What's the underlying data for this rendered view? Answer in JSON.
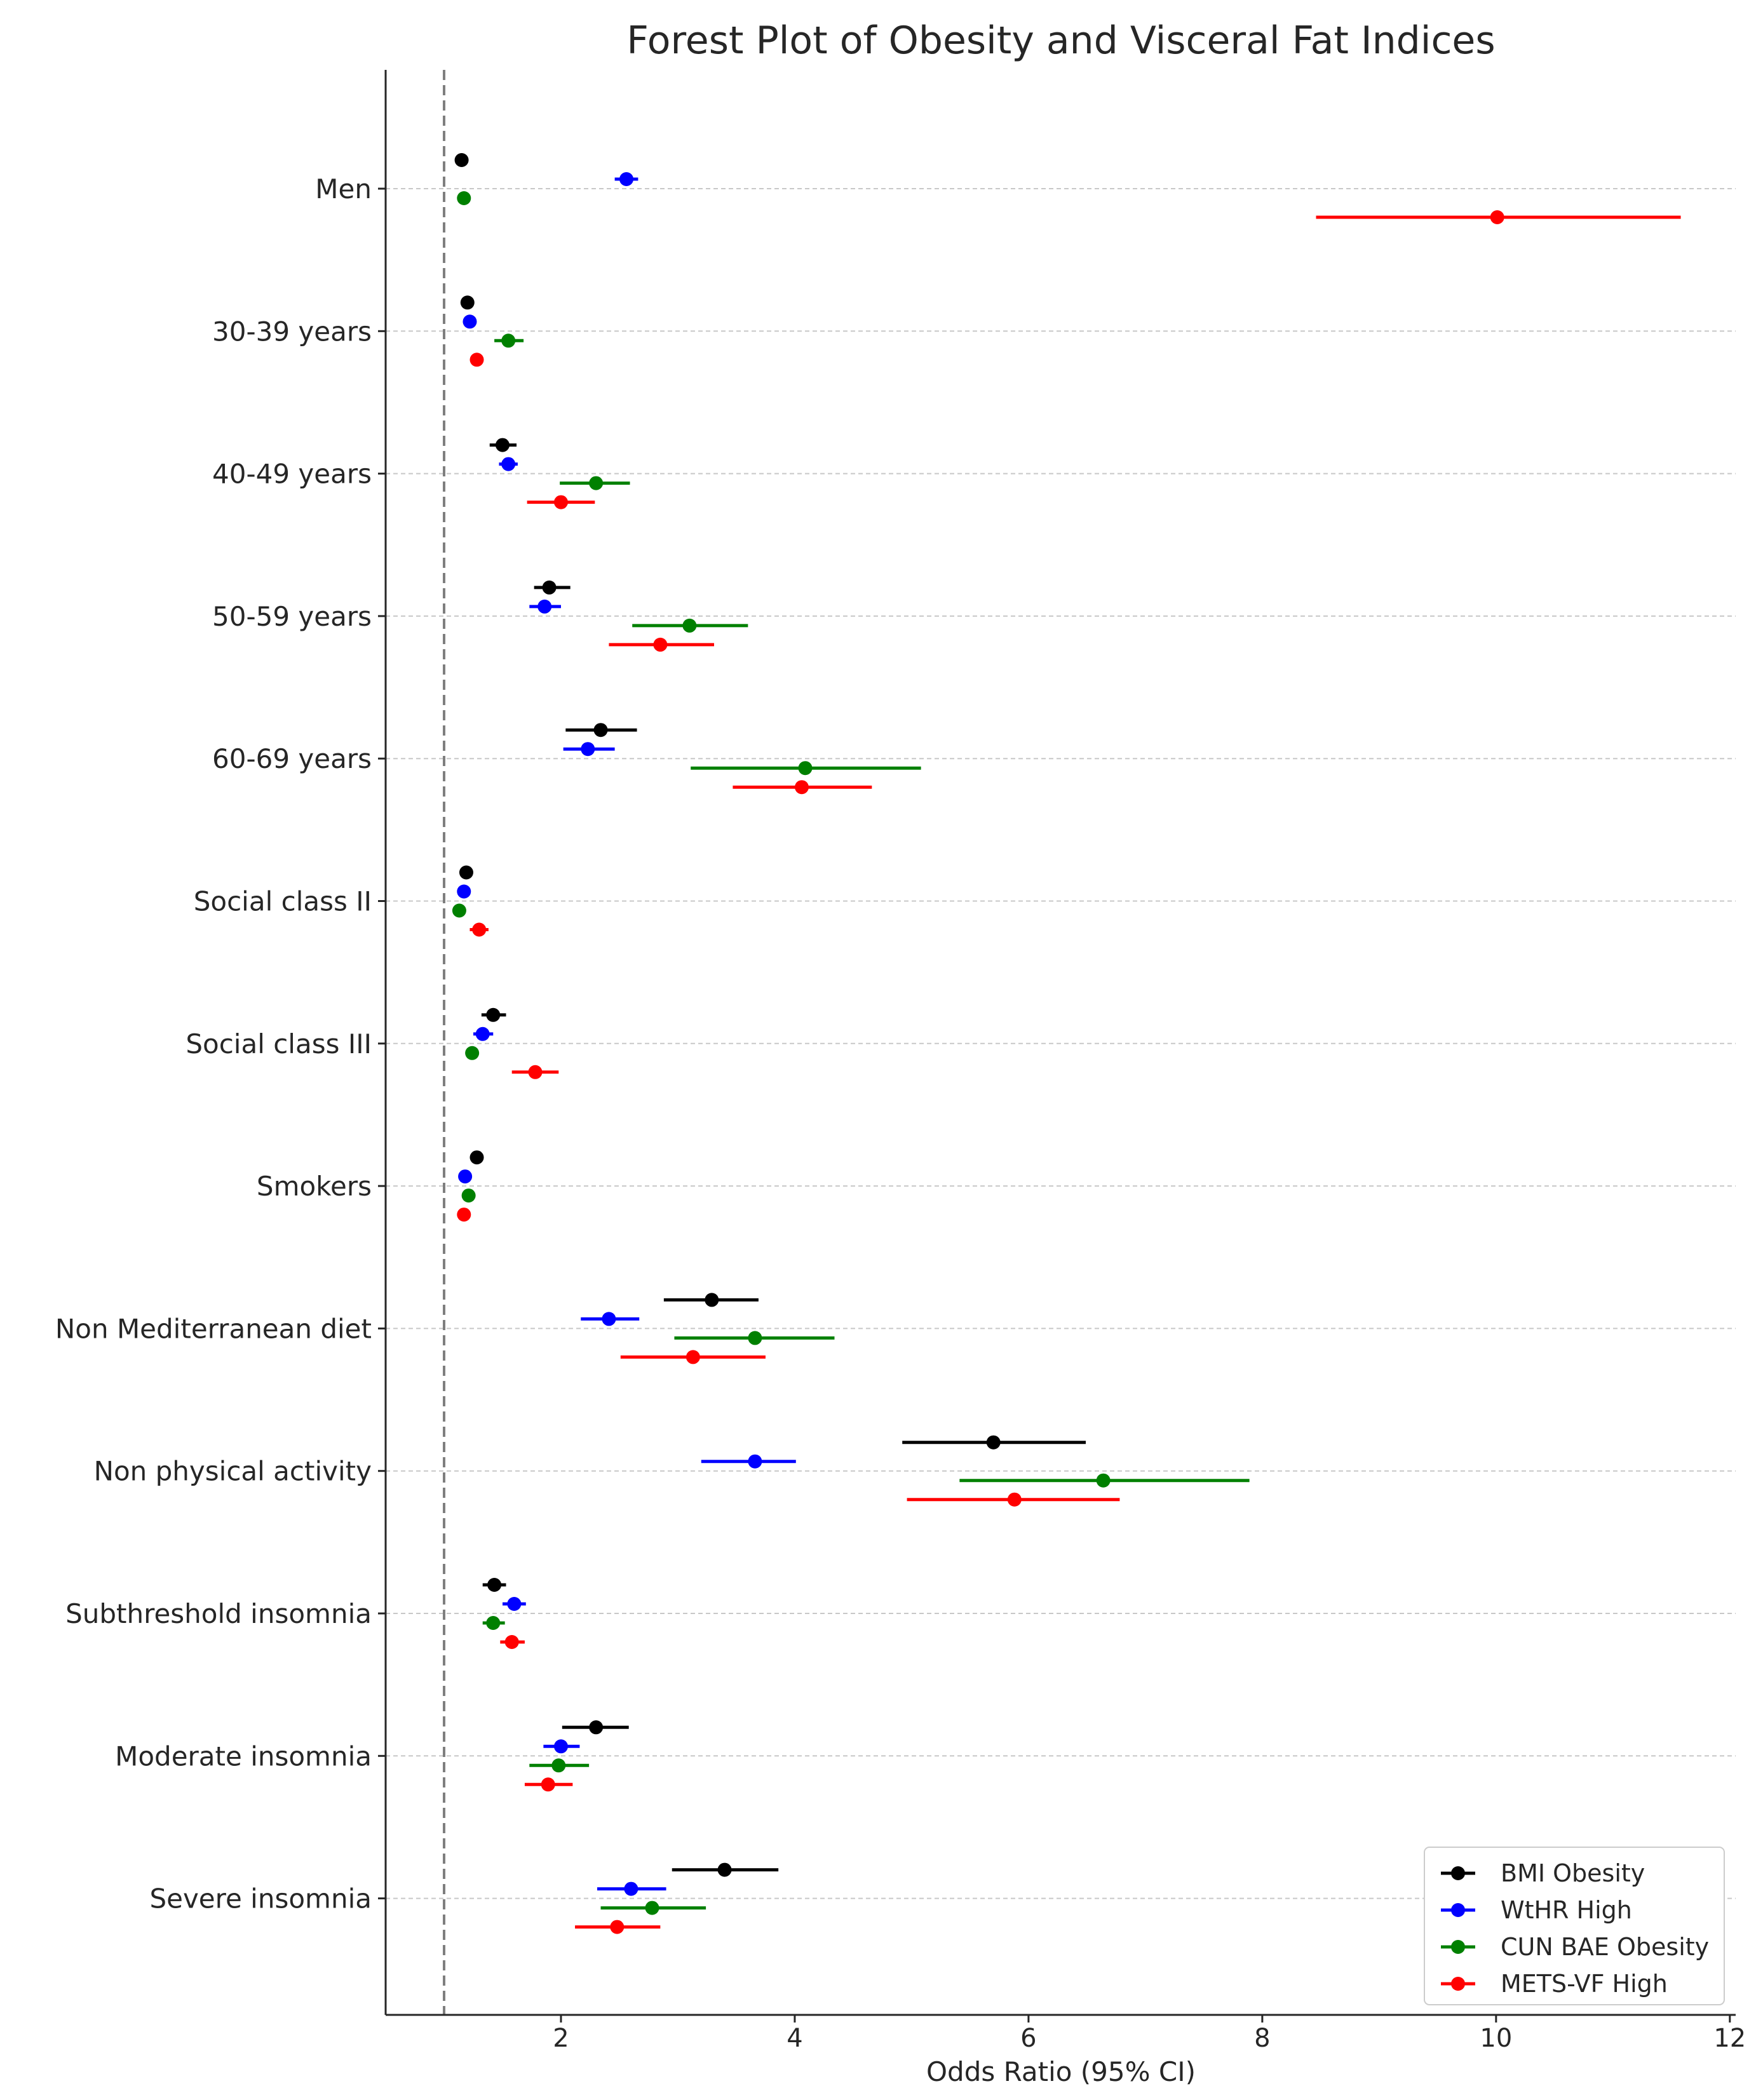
{
  "chart_data": {
    "type": "forest",
    "title": "Forest Plot of Obesity and Visceral Fat Indices",
    "xlabel": "Odds Ratio (95% CI)",
    "xlim": [
      0.5,
      12.05
    ],
    "xticks": [
      2,
      4,
      6,
      8,
      10,
      12
    ],
    "reference_line": 1,
    "legend_position": "bottom-right",
    "categories": [
      "Men",
      "30-39 years",
      "40-49 years",
      "50-59 years",
      "60-69 years",
      "Social class II",
      "Social class III",
      "Smokers",
      "Non Mediterranean diet",
      "Non physical activity",
      "Subthreshold insomnia",
      "Moderate insomnia",
      "Severe insomnia"
    ],
    "series": [
      {
        "name": "BMI Obesity",
        "color": "#000000",
        "points": [
          {
            "or": 1.15,
            "lo": 1.12,
            "hi": 1.18
          },
          {
            "or": 1.2,
            "lo": 1.16,
            "hi": 1.24
          },
          {
            "or": 1.5,
            "lo": 1.39,
            "hi": 1.62
          },
          {
            "or": 1.9,
            "lo": 1.77,
            "hi": 2.08
          },
          {
            "or": 2.34,
            "lo": 2.04,
            "hi": 2.65
          },
          {
            "or": 1.19,
            "lo": 1.15,
            "hi": 1.23
          },
          {
            "or": 1.42,
            "lo": 1.32,
            "hi": 1.53
          },
          {
            "or": 1.28,
            "lo": 1.23,
            "hi": 1.33
          },
          {
            "or": 3.29,
            "lo": 2.88,
            "hi": 3.69
          },
          {
            "or": 5.7,
            "lo": 4.92,
            "hi": 6.49
          },
          {
            "or": 1.43,
            "lo": 1.33,
            "hi": 1.53
          },
          {
            "or": 2.3,
            "lo": 2.01,
            "hi": 2.58
          },
          {
            "or": 3.4,
            "lo": 2.95,
            "hi": 3.86
          }
        ]
      },
      {
        "name": "WtHR High",
        "color": "#0000ff",
        "points": [
          {
            "or": 2.56,
            "lo": 2.46,
            "hi": 2.66
          },
          {
            "or": 1.22,
            "lo": 1.18,
            "hi": 1.26
          },
          {
            "or": 1.55,
            "lo": 1.47,
            "hi": 1.63
          },
          {
            "or": 1.86,
            "lo": 1.73,
            "hi": 2.0
          },
          {
            "or": 2.23,
            "lo": 2.02,
            "hi": 2.46
          },
          {
            "or": 1.17,
            "lo": 1.13,
            "hi": 1.21
          },
          {
            "or": 1.33,
            "lo": 1.25,
            "hi": 1.42
          },
          {
            "or": 1.18,
            "lo": 1.14,
            "hi": 1.22
          },
          {
            "or": 2.41,
            "lo": 2.17,
            "hi": 2.67
          },
          {
            "or": 3.66,
            "lo": 3.2,
            "hi": 4.01
          },
          {
            "or": 1.6,
            "lo": 1.5,
            "hi": 1.7
          },
          {
            "or": 2.0,
            "lo": 1.85,
            "hi": 2.16
          },
          {
            "or": 2.6,
            "lo": 2.31,
            "hi": 2.9
          }
        ]
      },
      {
        "name": "CUN BAE Obesity",
        "color": "#008000",
        "points": [
          {
            "or": 1.17,
            "lo": 1.14,
            "hi": 1.2
          },
          {
            "or": 1.55,
            "lo": 1.43,
            "hi": 1.68
          },
          {
            "or": 2.3,
            "lo": 1.99,
            "hi": 2.59
          },
          {
            "or": 3.1,
            "lo": 2.61,
            "hi": 3.6
          },
          {
            "or": 4.09,
            "lo": 3.11,
            "hi": 5.08
          },
          {
            "or": 1.13,
            "lo": 1.1,
            "hi": 1.16
          },
          {
            "or": 1.24,
            "lo": 1.2,
            "hi": 1.28
          },
          {
            "or": 1.21,
            "lo": 1.17,
            "hi": 1.25
          },
          {
            "or": 3.66,
            "lo": 2.97,
            "hi": 4.34
          },
          {
            "or": 6.64,
            "lo": 5.41,
            "hi": 7.89
          },
          {
            "or": 1.42,
            "lo": 1.33,
            "hi": 1.52
          },
          {
            "or": 1.98,
            "lo": 1.73,
            "hi": 2.24
          },
          {
            "or": 2.78,
            "lo": 2.34,
            "hi": 3.24
          }
        ]
      },
      {
        "name": "METS-VF High",
        "color": "#ff0000",
        "points": [
          {
            "or": 10.01,
            "lo": 8.46,
            "hi": 11.58
          },
          {
            "or": 1.28,
            "lo": 1.24,
            "hi": 1.32
          },
          {
            "or": 2.0,
            "lo": 1.71,
            "hi": 2.29
          },
          {
            "or": 2.85,
            "lo": 2.41,
            "hi": 3.31
          },
          {
            "or": 4.06,
            "lo": 3.47,
            "hi": 4.66
          },
          {
            "or": 1.3,
            "lo": 1.22,
            "hi": 1.38
          },
          {
            "or": 1.78,
            "lo": 1.58,
            "hi": 1.98
          },
          {
            "or": 1.17,
            "lo": 1.13,
            "hi": 1.21
          },
          {
            "or": 3.13,
            "lo": 2.51,
            "hi": 3.75
          },
          {
            "or": 5.88,
            "lo": 4.96,
            "hi": 6.78
          },
          {
            "or": 1.58,
            "lo": 1.48,
            "hi": 1.69
          },
          {
            "or": 1.89,
            "lo": 1.69,
            "hi": 2.1
          },
          {
            "or": 2.48,
            "lo": 2.12,
            "hi": 2.85
          }
        ]
      }
    ]
  }
}
